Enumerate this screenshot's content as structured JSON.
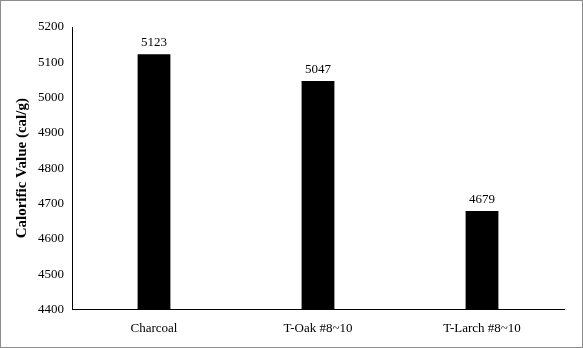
{
  "chart_data": {
    "type": "bar",
    "y_label": "Calorific Value (cal/g)",
    "categories": [
      "Charcoal",
      "T-Oak #8~10",
      "T-Larch #8~10"
    ],
    "values": [
      5123,
      5047,
      4679
    ],
    "color": "#000000",
    "ylim": [
      4400,
      5200
    ],
    "yticks": [
      4400,
      4500,
      4600,
      4700,
      4800,
      4900,
      5000,
      5100,
      5200
    ],
    "grid": false,
    "data_labels": true
  }
}
